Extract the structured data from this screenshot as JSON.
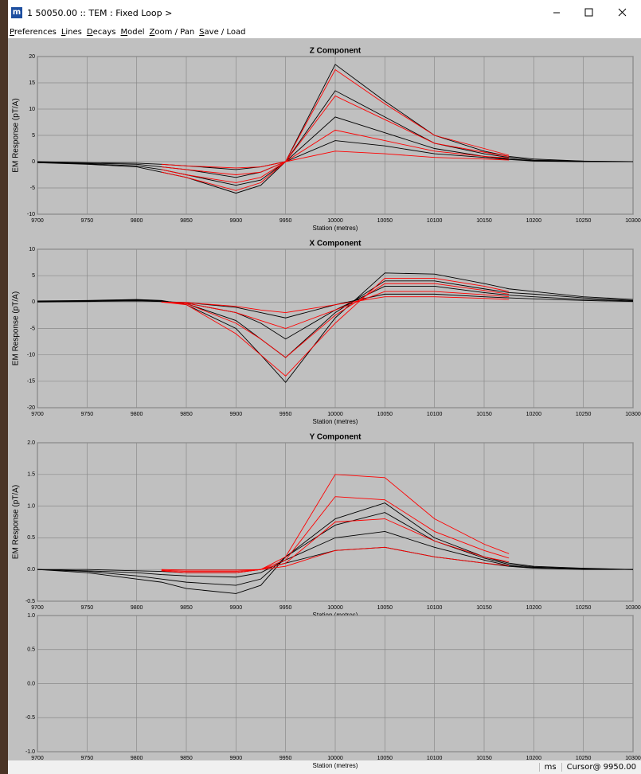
{
  "window": {
    "app_icon": "m",
    "title": "1 50050.00 :: TEM : Fixed Loop >",
    "menu": [
      "Preferences",
      "Lines",
      "Decays",
      "Model",
      "Zoom / Pan",
      "Save / Load"
    ],
    "status": [
      "ms",
      "Cursor@ 9950.00"
    ]
  },
  "chart_data": [
    {
      "type": "line",
      "title": "Z Component",
      "x_label": "Station (metres)",
      "y_label": "EM Response (pT/A)",
      "grid": true,
      "xlim": [
        9700,
        10300
      ],
      "xticks": [
        9700,
        9750,
        9800,
        9850,
        9900,
        9950,
        10000,
        10050,
        10100,
        10150,
        10200,
        10250,
        10300
      ],
      "ylim": [
        -10,
        20
      ],
      "yticks": [
        -10,
        -5,
        0,
        5,
        10,
        15,
        20
      ],
      "x": [
        9700,
        9750,
        9800,
        9825,
        9850,
        9900,
        9925,
        9950,
        10000,
        10050,
        10100,
        10150,
        10175,
        10200,
        10250,
        10300
      ],
      "series": [
        {
          "color": "#000000",
          "values": [
            -0.2,
            -0.5,
            -1,
            -2,
            -3,
            -6,
            -4.5,
            0,
            18.5,
            11.5,
            5,
            2,
            1,
            0.5,
            0.1,
            0
          ]
        },
        {
          "color": "#000000",
          "values": [
            -0.1,
            -0.4,
            -0.8,
            -1.5,
            -2.5,
            -4.5,
            -3.5,
            0,
            13.5,
            8.5,
            3.5,
            1.5,
            0.8,
            0.3,
            0.1,
            0
          ]
        },
        {
          "color": "#000000",
          "values": [
            -0.1,
            -0.3,
            -0.5,
            -1,
            -1.5,
            -3,
            -2,
            0,
            8.5,
            5.5,
            2.5,
            1,
            0.5,
            0.2,
            0,
            0
          ]
        },
        {
          "color": "#000000",
          "values": [
            0,
            -0.2,
            -0.3,
            -0.5,
            -0.8,
            -1.5,
            -1,
            0,
            4,
            3,
            1.5,
            0.8,
            0.4,
            0.1,
            0,
            0
          ]
        },
        {
          "color": "#ff0000",
          "values": [
            null,
            null,
            null,
            -2,
            -3,
            -5.5,
            -4,
            0,
            17.5,
            11,
            5,
            2.5,
            1.2,
            null,
            null,
            null
          ]
        },
        {
          "color": "#ff0000",
          "values": [
            null,
            null,
            null,
            -1.5,
            -2.5,
            -4,
            -3,
            0,
            12.5,
            8,
            3.5,
            1.8,
            1,
            null,
            null,
            null
          ]
        },
        {
          "color": "#ff0000",
          "values": [
            null,
            null,
            null,
            -1,
            -1.5,
            -2.5,
            -2,
            0,
            6,
            4,
            2,
            1,
            0.7,
            null,
            null,
            null
          ]
        },
        {
          "color": "#ff0000",
          "values": [
            null,
            null,
            null,
            -0.5,
            -0.8,
            -1.2,
            -1,
            0,
            2,
            1.5,
            0.8,
            0.5,
            0.3,
            null,
            null,
            null
          ]
        }
      ]
    },
    {
      "type": "line",
      "title": "X Component",
      "x_label": "Station (metres)",
      "y_label": "EM Response (pT/A)",
      "grid": true,
      "xlim": [
        9700,
        10300
      ],
      "xticks": [
        9700,
        9750,
        9800,
        9850,
        9900,
        9950,
        10000,
        10050,
        10100,
        10150,
        10200,
        10250,
        10300
      ],
      "ylim": [
        -20,
        10
      ],
      "yticks": [
        -20,
        -15,
        -10,
        -5,
        0,
        5,
        10
      ],
      "x": [
        9700,
        9750,
        9800,
        9825,
        9850,
        9900,
        9925,
        9950,
        10000,
        10050,
        10100,
        10150,
        10175,
        10200,
        10250,
        10300
      ],
      "series": [
        {
          "color": "#000000",
          "values": [
            0.2,
            0.3,
            0.5,
            0.3,
            -0.5,
            -5,
            -10,
            -15.2,
            -3,
            5.5,
            5.3,
            3.5,
            2.5,
            2,
            1,
            0.5
          ]
        },
        {
          "color": "#000000",
          "values": [
            0.1,
            0.2,
            0.4,
            0.2,
            -0.3,
            -3.5,
            -7,
            -10.5,
            -2,
            4,
            4,
            2.5,
            1.8,
            1.5,
            0.8,
            0.3
          ]
        },
        {
          "color": "#000000",
          "values": [
            0.1,
            0.2,
            0.3,
            0.1,
            -0.2,
            -2,
            -4,
            -7,
            -1.5,
            3,
            3,
            1.8,
            1.3,
            1,
            0.5,
            0.2
          ]
        },
        {
          "color": "#000000",
          "values": [
            0,
            0.1,
            0.2,
            0.1,
            -0.1,
            -1,
            -2,
            -3,
            -0.5,
            1.5,
            1.5,
            1,
            0.8,
            0.6,
            0.3,
            0.1
          ]
        },
        {
          "color": "#ff0000",
          "values": [
            null,
            null,
            null,
            0,
            -0.5,
            -6,
            -10,
            -14,
            -4,
            4.5,
            4.5,
            3,
            2,
            null,
            null,
            null
          ]
        },
        {
          "color": "#ff0000",
          "values": [
            null,
            null,
            null,
            0,
            -0.3,
            -4,
            -7,
            -10.5,
            -2.5,
            3.5,
            3.5,
            2.2,
            1.5,
            null,
            null,
            null
          ]
        },
        {
          "color": "#ff0000",
          "values": [
            null,
            null,
            null,
            0,
            -0.2,
            -2,
            -3.5,
            -5,
            -1.5,
            2,
            2,
            1.4,
            1,
            null,
            null,
            null
          ]
        },
        {
          "color": "#ff0000",
          "values": [
            null,
            null,
            null,
            0,
            -0.1,
            -0.8,
            -1.5,
            -2,
            -0.5,
            1,
            1,
            0.7,
            0.5,
            null,
            null,
            null
          ]
        }
      ]
    },
    {
      "type": "line",
      "title": "Y Component",
      "x_label": "Station (metres)",
      "y_label": "EM Response (pT/A)",
      "grid": true,
      "xlim": [
        9700,
        10300
      ],
      "xticks": [
        9700,
        9750,
        9800,
        9850,
        9900,
        9950,
        10000,
        10050,
        10100,
        10150,
        10200,
        10250,
        10300
      ],
      "ylim": [
        -0.5,
        2.0
      ],
      "yticks": [
        {
          "value": -0.5,
          "label": "-0.5"
        },
        {
          "value": 0,
          "label": "0.0"
        },
        {
          "value": 0.5,
          "label": "0.5"
        },
        {
          "value": 1,
          "label": "1.0"
        },
        {
          "value": 1.5,
          "label": "1.5"
        },
        {
          "value": 2,
          "label": "2.0"
        }
      ],
      "x": [
        9700,
        9750,
        9800,
        9825,
        9850,
        9900,
        9925,
        9950,
        10000,
        10050,
        10100,
        10150,
        10175,
        10200,
        10250,
        10300
      ],
      "series": [
        {
          "color": "#000000",
          "values": [
            0,
            -0.05,
            -0.15,
            -0.2,
            -0.3,
            -0.38,
            -0.25,
            0.2,
            0.8,
            1.05,
            0.5,
            0.2,
            0.1,
            0.05,
            0.02,
            0
          ]
        },
        {
          "color": "#000000",
          "values": [
            0,
            -0.03,
            -0.1,
            -0.15,
            -0.2,
            -0.25,
            -0.15,
            0.2,
            0.7,
            0.9,
            0.45,
            0.18,
            0.08,
            0.04,
            0.01,
            0
          ]
        },
        {
          "color": "#000000",
          "values": [
            0,
            -0.02,
            -0.05,
            -0.08,
            -0.1,
            -0.12,
            -0.05,
            0.15,
            0.5,
            0.6,
            0.35,
            0.15,
            0.06,
            0.03,
            0.01,
            0
          ]
        },
        {
          "color": "#000000",
          "values": [
            0,
            0,
            -0.02,
            -0.03,
            -0.05,
            -0.05,
            0,
            0.1,
            0.3,
            0.35,
            0.2,
            0.1,
            0.05,
            0.02,
            0,
            0
          ]
        },
        {
          "color": "#ff0000",
          "values": [
            null,
            null,
            null,
            -0.02,
            -0.05,
            -0.05,
            0,
            0.2,
            1.5,
            1.45,
            0.8,
            0.4,
            0.25,
            null,
            null,
            null
          ]
        },
        {
          "color": "#ff0000",
          "values": [
            null,
            null,
            null,
            -0.02,
            -0.05,
            -0.05,
            0,
            0.15,
            1.15,
            1.1,
            0.6,
            0.3,
            0.18,
            null,
            null,
            null
          ]
        },
        {
          "color": "#ff0000",
          "values": [
            null,
            null,
            null,
            -0.01,
            -0.03,
            -0.03,
            0,
            0.1,
            0.75,
            0.8,
            0.45,
            0.2,
            0.12,
            null,
            null,
            null
          ]
        },
        {
          "color": "#ff0000",
          "values": [
            null,
            null,
            null,
            0,
            -0.01,
            -0.01,
            0,
            0.05,
            0.3,
            0.35,
            0.2,
            0.1,
            0.06,
            null,
            null,
            null
          ]
        }
      ]
    },
    {
      "type": "line",
      "x_label": "Station (metres)",
      "grid": true,
      "xlim": [
        9700,
        10300
      ],
      "xticks": [
        9700,
        9750,
        9800,
        9850,
        9900,
        9950,
        10000,
        10050,
        10100,
        10150,
        10200,
        10250,
        10300
      ],
      "ylim": [
        -1.0,
        1.0
      ],
      "yticks": [
        {
          "value": -1,
          "label": "-1.0"
        },
        {
          "value": -0.5,
          "label": "-0.5"
        },
        {
          "value": 0,
          "label": "0.0"
        },
        {
          "value": 0.5,
          "label": "0.5"
        },
        {
          "value": 1,
          "label": "1.0"
        }
      ],
      "x": [],
      "series": []
    }
  ]
}
